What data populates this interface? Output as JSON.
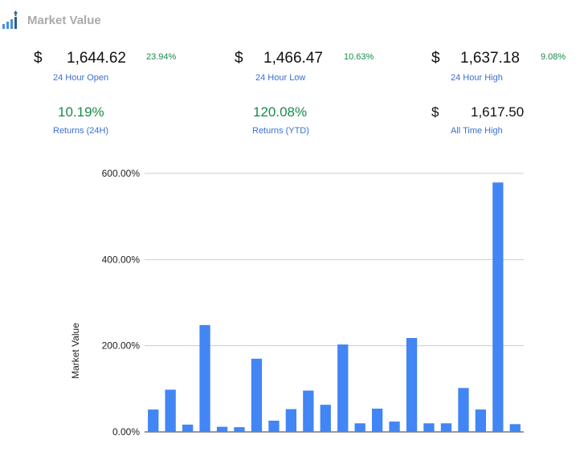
{
  "header": {
    "title": "Market Value",
    "icon": "chart-logo-icon"
  },
  "metrics": {
    "open": {
      "currency": "$",
      "value": "1,644.62",
      "pct": "23.94%",
      "label": "24 Hour Open"
    },
    "low": {
      "currency": "$",
      "value": "1,466.47",
      "pct": "10.63%",
      "label": "24 Hour Low"
    },
    "high": {
      "currency": "$",
      "value": "1,637.18",
      "pct": "9.08%",
      "label": "24 Hour High"
    },
    "returns24": {
      "value": "10.19%",
      "label": "Returns (24H)"
    },
    "returnsytd": {
      "value": "120.08%",
      "label": "Returns (YTD)"
    },
    "ath": {
      "currency": "$",
      "value": "1,617.50",
      "label": "All Time High"
    }
  },
  "colors": {
    "bar": "#4285f4",
    "green": "#1a8a4a",
    "blue_label": "#3b6fd1"
  },
  "chart_data": {
    "type": "bar",
    "ylabel": "Market Value",
    "ylim": [
      0,
      600
    ],
    "yticks": [
      "0.00%",
      "200.00%",
      "400.00%",
      "600.00%"
    ],
    "ytick_values": [
      0,
      200,
      400,
      600
    ],
    "grid": true,
    "values": [
      52,
      98,
      17,
      248,
      12,
      11,
      170,
      26,
      53,
      96,
      63,
      203,
      20,
      54,
      24,
      218,
      20,
      20,
      102,
      52,
      579,
      18
    ]
  }
}
